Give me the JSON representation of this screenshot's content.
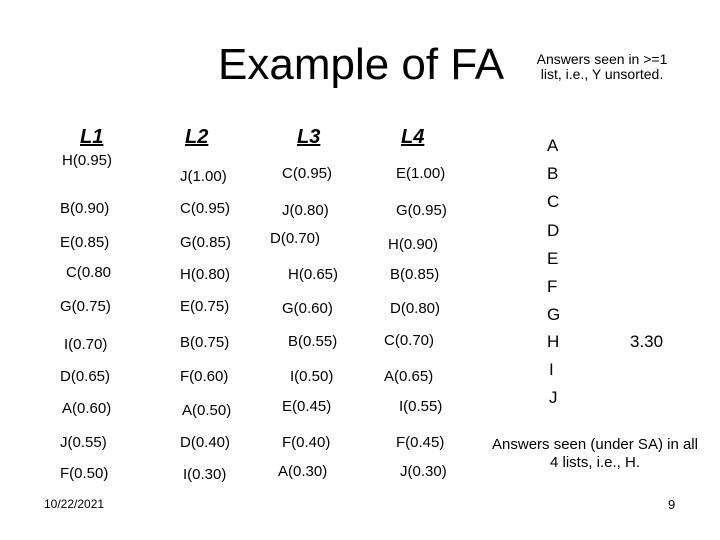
{
  "title": "Example of FA",
  "note_top": "Answers seen in >=1 list, i.e., Y unsorted.",
  "headers": [
    "L1",
    "L2",
    "L3",
    "L4"
  ],
  "columns": [
    [
      "H(0.95)",
      "B(0.90)",
      "E(0.85)",
      "C(0.80",
      "G(0.75)",
      "I(0.70)",
      "D(0.65)",
      "A(0.60)",
      "J(0.55)",
      "F(0.50)"
    ],
    [
      "J(1.00)",
      "C(0.95)",
      "G(0.85)",
      "H(0.80)",
      "E(0.75)",
      "B(0.75)",
      "F(0.60)",
      "A(0.50)",
      "D(0.40)",
      "I(0.30)"
    ],
    [
      "C(0.95)",
      "J(0.80)",
      "D(0.70)",
      "H(0.65)",
      "G(0.60)",
      "B(0.55)",
      "I(0.50)",
      "E(0.45)",
      "F(0.40)",
      "A(0.30)"
    ],
    [
      "E(1.00)",
      "G(0.95)",
      "H(0.90)",
      "B(0.85)",
      "D(0.80)",
      "C(0.70)",
      "A(0.65)",
      "I(0.55)",
      "F(0.45)",
      "J(0.30)"
    ]
  ],
  "letters": [
    "A",
    "B",
    "C",
    "D",
    "E",
    "F",
    "G",
    "H",
    "I",
    "J"
  ],
  "score_h": "3.30",
  "note_bottom": "Answers seen (under SA) in all 4 lists, i.e., H.",
  "date": "10/22/2021",
  "page_number": "9"
}
